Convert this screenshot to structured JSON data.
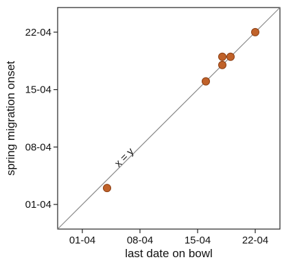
{
  "chart_data": {
    "type": "scatter",
    "title": "",
    "xlabel": "last date on bowl",
    "ylabel": "spring migration onset",
    "x_ticks": [
      "01-04",
      "08-04",
      "15-04",
      "22-04"
    ],
    "y_ticks": [
      "01-04",
      "08-04",
      "15-04",
      "22-04"
    ],
    "xlim": [
      "2000-03-29",
      "2000-04-25"
    ],
    "ylim": [
      "2000-03-29",
      "2000-04-25"
    ],
    "grid": false,
    "reference_line": {
      "label": "x = y"
    },
    "marker_color": "#c0622a",
    "points": [
      {
        "x": "2000-04-04",
        "y": "2000-04-03"
      },
      {
        "x": "2000-04-16",
        "y": "2000-04-16"
      },
      {
        "x": "2000-04-18",
        "y": "2000-04-18"
      },
      {
        "x": "2000-04-18",
        "y": "2000-04-19"
      },
      {
        "x": "2000-04-19",
        "y": "2000-04-19"
      },
      {
        "x": "2000-04-22",
        "y": "2000-04-22"
      }
    ]
  }
}
